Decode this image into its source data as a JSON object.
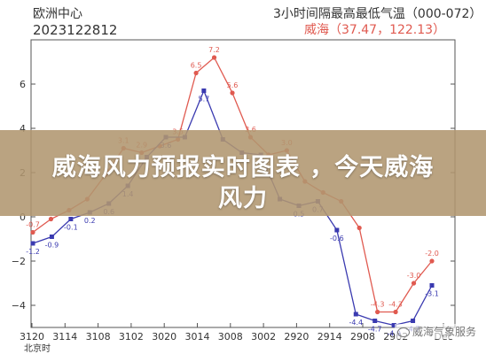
{
  "header": {
    "org": "欧洲中心",
    "run": "2023122812",
    "product": "3小时间隔最高最低气温（000-072）",
    "station": "威海（37.47，122.13）"
  },
  "banner": {
    "line1": "威海风力预报实时图表 ，今天威海",
    "line2": "风力"
  },
  "watermark": "威海气象服务",
  "chart_data": {
    "type": "line",
    "title": "3小时间隔最高最低气温（000-072）",
    "subtitle": "威海（37.47，122.13）",
    "xlabel": "",
    "ylabel": "",
    "ylim": [
      -5,
      8
    ],
    "yticks": [
      -4,
      -2,
      0,
      2,
      4,
      6
    ],
    "grid": false,
    "x_tick_labels": [
      "3120",
      "3114",
      "3108",
      "3102",
      "3020",
      "3014",
      "3008",
      "3002",
      "2920",
      "2914",
      "2908",
      "2902",
      "Dec"
    ],
    "x_corner_label": "北京时",
    "series": [
      {
        "color": "#e05a50",
        "marker": "circle",
        "values": [
          -0.7,
          -0.1,
          0.3,
          0.8,
          1.9,
          3.1,
          2.9,
          3.2,
          3.5,
          6.5,
          7.2,
          5.6,
          3.6,
          2.8,
          3.0,
          1.6,
          1.1,
          0.7,
          -0.5,
          -4.3,
          -4.3,
          -3.0,
          -2.0
        ],
        "labels": [
          "-0.7",
          "",
          "",
          "",
          "",
          "3.1",
          "2.9",
          "",
          "3.5",
          "6.5",
          "7.2",
          "5.6",
          "3.6",
          "",
          "3.0",
          "",
          "",
          "",
          "",
          "-4.3",
          "-4.3",
          "-3.0",
          "-2.0"
        ]
      },
      {
        "color": "#3a3ab0",
        "marker": "square",
        "values": [
          -1.2,
          -0.9,
          -0.1,
          0.2,
          0.6,
          1.4,
          2.7,
          3.6,
          3.6,
          5.7,
          3.5,
          2.9,
          2.8,
          0.8,
          0.5,
          0.7,
          -0.6,
          -4.4,
          -4.7,
          -4.9,
          -4.7,
          -3.1
        ],
        "labels": [
          "-1.2",
          "-0.9",
          "-0.1",
          "0.2",
          "0.6",
          "1.4",
          "",
          "3.6",
          "",
          "5.7",
          "",
          "",
          "",
          "",
          "0.5",
          "0.7",
          "-0.6",
          "-4.4",
          "-4.7",
          "-4.9",
          "-4.7",
          "-3.1"
        ]
      }
    ]
  }
}
